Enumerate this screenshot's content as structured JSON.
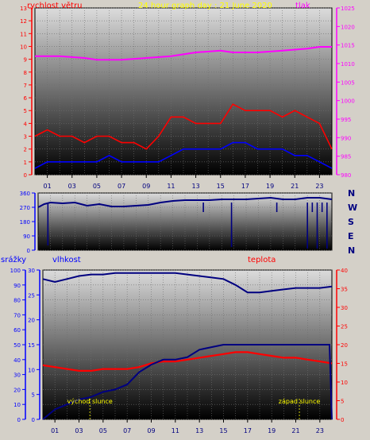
{
  "page": {
    "background": "#d4d0c8",
    "plot_gradient_top": "#dcdcdc",
    "plot_gradient_bottom": "#000000",
    "grid_color": "#6f6f6f",
    "x_ticks": [
      "01",
      "03",
      "05",
      "07",
      "09",
      "11",
      "13",
      "15",
      "17",
      "19",
      "21",
      "23"
    ]
  },
  "chart_data": [
    {
      "type": "line",
      "title": "24 hour graph day : 21 June 2020",
      "title_color": "#ffff00",
      "left_axis": {
        "label": "rychlost větru",
        "color": "#ff0000",
        "range": [
          0,
          13
        ],
        "ticks": [
          0,
          1,
          2,
          3,
          4,
          5,
          6,
          7,
          8,
          9,
          10,
          11,
          12,
          13
        ]
      },
      "right_axis": {
        "label": "tlak",
        "color": "#ff00ff",
        "range": [
          980,
          1025
        ],
        "ticks": [
          980,
          985,
          990,
          995,
          1000,
          1005,
          1010,
          1015,
          1020,
          1025
        ]
      },
      "x_range": [
        0,
        24
      ],
      "series": [
        {
          "axis": "right",
          "color": "#ff00ff",
          "x": [
            0,
            2,
            4,
            5,
            7,
            9,
            11,
            13,
            15,
            16,
            18,
            20,
            22,
            23,
            24
          ],
          "y": [
            1012,
            1012,
            1011.5,
            1011,
            1011,
            1011.5,
            1012,
            1013,
            1013.5,
            1013,
            1013,
            1013.5,
            1014,
            1014.5,
            1014.5
          ]
        },
        {
          "axis": "left",
          "color": "#ff0000",
          "kind": "gust",
          "x": [
            0,
            1,
            2,
            3,
            4,
            5,
            6,
            7,
            8,
            9,
            10,
            11,
            12,
            13,
            14,
            15,
            16,
            17,
            18,
            19,
            20,
            21,
            22,
            23,
            24
          ],
          "y": [
            3,
            3.5,
            3,
            3,
            2.5,
            3,
            3,
            2.5,
            2.5,
            2,
            3,
            4.5,
            4.5,
            4,
            4,
            4,
            5.5,
            5,
            5,
            5,
            4.5,
            5,
            4.5,
            4,
            2
          ]
        },
        {
          "axis": "left",
          "color": "#0000ff",
          "kind": "average",
          "x": [
            0,
            1,
            2,
            3,
            4,
            5,
            6,
            7,
            8,
            9,
            10,
            11,
            12,
            13,
            14,
            15,
            16,
            17,
            18,
            19,
            20,
            21,
            22,
            23,
            24
          ],
          "y": [
            0.5,
            1,
            1,
            1,
            1,
            1,
            1.5,
            1,
            1,
            1,
            1,
            1.5,
            2,
            2,
            2,
            2,
            2.5,
            2.5,
            2,
            2,
            2,
            1.5,
            1.5,
            1,
            0.5
          ]
        }
      ]
    },
    {
      "type": "line",
      "left_axis": {
        "range": [
          0,
          360
        ],
        "ticks": [
          0,
          90,
          180,
          270,
          360
        ],
        "color": "#0000ff"
      },
      "right_labels": [
        "N",
        "W",
        "S",
        "E",
        "N"
      ],
      "right_labels_color": "#000080",
      "x_range": [
        0,
        24
      ],
      "series": [
        {
          "color": "#000080",
          "x": [
            0,
            0.5,
            1,
            2,
            3,
            4,
            5,
            6,
            7,
            8,
            9,
            10,
            11,
            12,
            13,
            14,
            15,
            16,
            17,
            18,
            19,
            20,
            21,
            22,
            23,
            24
          ],
          "y": [
            270,
            290,
            300,
            295,
            300,
            280,
            290,
            275,
            275,
            280,
            285,
            300,
            310,
            315,
            315,
            315,
            320,
            320,
            320,
            325,
            330,
            320,
            320,
            330,
            330,
            320
          ]
        }
      ],
      "drops_x": [
        0.8,
        13.5,
        15.8,
        19.5,
        22,
        22.4,
        22.8,
        23.2,
        23.6
      ],
      "drops_to": [
        30,
        240,
        20,
        240,
        10,
        240,
        10,
        240,
        10
      ]
    },
    {
      "type": "line",
      "left_axis_labels": [
        "srážky",
        "vlhkost"
      ],
      "left_axis_label_colors": [
        "#0000ff",
        "#0000ff"
      ],
      "right_axis": {
        "label": "teplota",
        "color": "#ff0000",
        "range": [
          0,
          40
        ],
        "ticks": [
          0,
          5,
          10,
          15,
          20,
          25,
          30,
          35,
          40
        ]
      },
      "axis_humidity": {
        "range": [
          0,
          100
        ],
        "ticks": [
          0,
          10,
          20,
          30,
          40,
          50,
          60,
          70,
          80,
          90,
          100
        ],
        "color": "#0000ff"
      },
      "axis_rain": {
        "range": [
          0,
          30
        ],
        "ticks": [
          0,
          5,
          10,
          15,
          20,
          25,
          30
        ],
        "color": "#0000ff"
      },
      "x_range": [
        0,
        24
      ],
      "annotations": [
        {
          "text": "východ slunce",
          "x": 3.9,
          "color": "#ffff00"
        },
        {
          "text": "západ slunce",
          "x": 21.3,
          "color": "#ffff00"
        }
      ],
      "series": [
        {
          "axis": "humidity",
          "color": "#000080",
          "x": [
            0,
            1,
            2,
            3,
            4,
            5,
            6,
            7,
            8,
            9,
            10,
            11,
            12,
            13,
            14,
            15,
            16,
            17,
            18,
            19,
            20,
            21,
            22,
            23,
            24
          ],
          "y": [
            94,
            92,
            94,
            96,
            97,
            97,
            98,
            98,
            98,
            98,
            98,
            98,
            97,
            96,
            95,
            94,
            90,
            85,
            85,
            86,
            87,
            88,
            88,
            88,
            89
          ]
        },
        {
          "axis": "right",
          "color": "#ff0000",
          "x": [
            0,
            1,
            2,
            3,
            4,
            5,
            6,
            7,
            8,
            9,
            10,
            11,
            12,
            13,
            14,
            15,
            16,
            17,
            18,
            19,
            20,
            21,
            22,
            23,
            24
          ],
          "y": [
            14.5,
            14,
            13.5,
            13,
            13,
            13.5,
            13.5,
            13.5,
            14,
            15,
            15.5,
            15.5,
            16,
            16.5,
            17,
            17.5,
            18,
            18,
            17.5,
            17,
            16.5,
            16.5,
            16,
            15.5,
            15
          ]
        },
        {
          "axis": "rain",
          "color": "#000080",
          "x": [
            0,
            1,
            2,
            3,
            4,
            5,
            6,
            7,
            8,
            9,
            10,
            11,
            12,
            13,
            14,
            15,
            16,
            17,
            18,
            19,
            20,
            21,
            22,
            23,
            23.8,
            24
          ],
          "y": [
            0,
            2,
            3,
            4,
            4.5,
            5.5,
            6,
            7,
            9.5,
            11,
            12,
            12,
            12.5,
            14,
            14.5,
            15,
            15,
            15,
            15,
            15,
            15,
            15,
            15,
            15,
            15,
            0
          ]
        }
      ]
    }
  ]
}
